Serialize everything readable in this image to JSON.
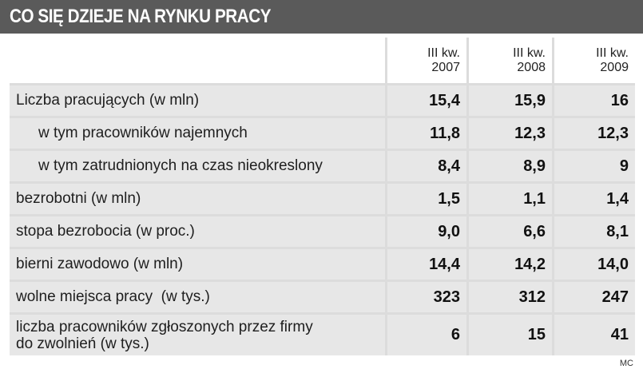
{
  "title": "CO SIĘ DZIEJE NA RYNKU PRACY",
  "columns": [
    {
      "line1": "III kw.",
      "line2": "2007"
    },
    {
      "line1": "III kw.",
      "line2": "2008"
    },
    {
      "line1": "III kw.",
      "line2": "2009"
    }
  ],
  "rows": [
    {
      "label": "Liczba pracujących (w mln)",
      "values": [
        "15,4",
        "15,9",
        "16"
      ]
    },
    {
      "label": "w tym pracowników najemnych",
      "values": [
        "11,8",
        "12,3",
        "12,3"
      ]
    },
    {
      "label": "w tym zatrudnionych na czas nieokreslony",
      "values": [
        "8,4",
        "8,9",
        "9"
      ]
    },
    {
      "label": "bezrobotni (w mln)",
      "values": [
        "1,5",
        "1,1",
        "1,4"
      ]
    },
    {
      "label": "stopa bezrobocia (w proc.)",
      "values": [
        "9,0",
        "6,6",
        "8,1"
      ]
    },
    {
      "label": "bierni zawodowo (w mln)",
      "values": [
        "14,4",
        "14,2",
        "14,0"
      ]
    },
    {
      "label": "wolne miejsca pracy  (w tys.)",
      "values": [
        "323",
        "312",
        "247"
      ]
    },
    {
      "label_line1": "liczba pracowników zgłoszonych przez firmy",
      "label_line2": "do zwolnień (w tys.)",
      "values": [
        "6",
        "15",
        "41"
      ]
    }
  ],
  "credit": "MC"
}
